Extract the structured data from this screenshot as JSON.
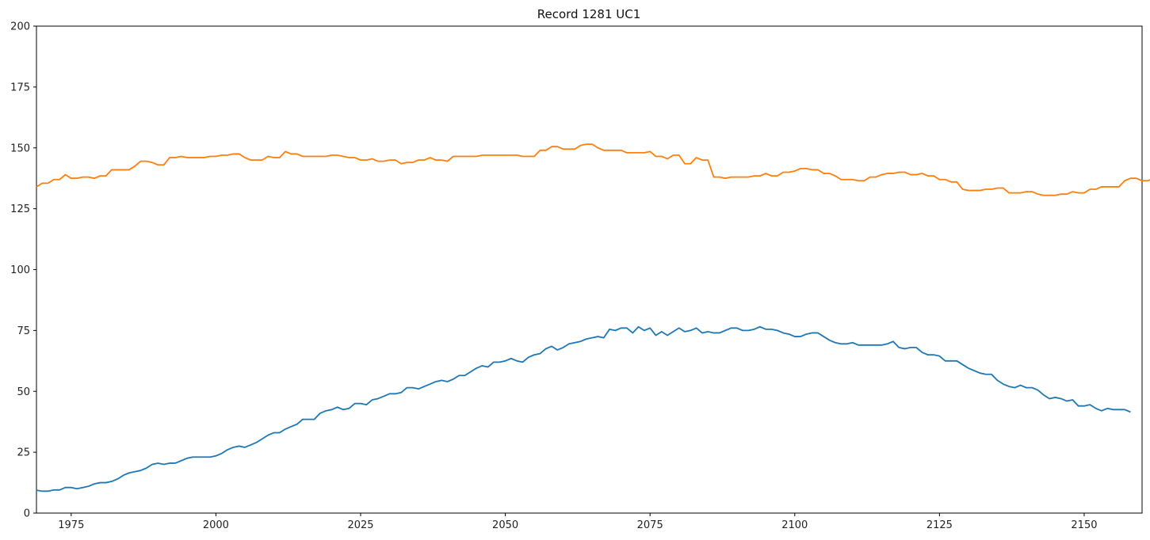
{
  "chart_data": {
    "type": "line",
    "title": "Record 1281 UC1",
    "xlabel": "",
    "ylabel": "",
    "xlim": [
      1969,
      2160
    ],
    "ylim": [
      0,
      200
    ],
    "grid": false,
    "x_ticks": [
      "1975",
      "2000",
      "2025",
      "2050",
      "2075",
      "2100",
      "2125",
      "2150"
    ],
    "y_ticks": [
      "0",
      "25",
      "50",
      "75",
      "100",
      "125",
      "150",
      "175",
      "200"
    ],
    "colors": [
      "#1f77b4",
      "#ff7f0e"
    ],
    "x_start": 1969,
    "x_step": 1,
    "series": [
      {
        "values": [
          9.4,
          9,
          9,
          9.5,
          9.5,
          10.5,
          10.5,
          10,
          10.5,
          11,
          12,
          12.5,
          12.5,
          13,
          14,
          15.5,
          16.5,
          17,
          17.5,
          18.5,
          20,
          20.5,
          20,
          20.5,
          20.5,
          21.5,
          22.5,
          23,
          23,
          23,
          23,
          23.5,
          24.5,
          26,
          27,
          27.5,
          27,
          28,
          29,
          30.5,
          32,
          33,
          33,
          34.5,
          35.5,
          36.5,
          38.5,
          38.5,
          38.5,
          41,
          42,
          42.5,
          43.5,
          42.5,
          43,
          45,
          45,
          44.5,
          46.5,
          47,
          48,
          49,
          49,
          49.5,
          51.5,
          51.5,
          51,
          52,
          53,
          54,
          54.5,
          54,
          55,
          56.5,
          56.5,
          58,
          59.5,
          60.5,
          60,
          62,
          62,
          62.5,
          63.5,
          62.5,
          62,
          64,
          65,
          65.5,
          67.5,
          68.5,
          67,
          68,
          69.5,
          70,
          70.5,
          71.5,
          72,
          72.5,
          72,
          75.5,
          75,
          76,
          76,
          74,
          76.5,
          75,
          76,
          73,
          74.5,
          73,
          74.5,
          76,
          74.5,
          75,
          76,
          74,
          74.5,
          74,
          74,
          75,
          76,
          76,
          75,
          75,
          75.5,
          76.5,
          75.5,
          75.5,
          75,
          74,
          73.5,
          72.5,
          72.5,
          73.5,
          74,
          74,
          72.5,
          71,
          70,
          69.5,
          69.5,
          70,
          69,
          69,
          69,
          69,
          69,
          69.5,
          70.5,
          68,
          67.5,
          68,
          68,
          66,
          65,
          65,
          64.5,
          62.5,
          62.5,
          62.5,
          61,
          59.5,
          58.5,
          57.5,
          57,
          57,
          54.5,
          53,
          52,
          51.5,
          52.5,
          51.5,
          51.5,
          50.5,
          48.5,
          47,
          47.5,
          47,
          46,
          46.5,
          44,
          44,
          44.5,
          43,
          42,
          43,
          42.5,
          42.5,
          42.5,
          41.5
        ]
      },
      {
        "values": [
          134,
          135.5,
          135.5,
          137,
          137,
          139,
          137.5,
          137.5,
          138,
          138,
          137.5,
          138.5,
          138.5,
          141,
          141,
          141,
          141,
          142.5,
          144.5,
          144.5,
          144,
          143,
          143,
          146,
          146,
          146.5,
          146,
          146,
          146,
          146,
          146.5,
          146.5,
          147,
          147,
          147.5,
          147.5,
          146,
          145,
          145,
          145,
          146.5,
          146,
          146,
          148.5,
          147.5,
          147.5,
          146.5,
          146.5,
          146.5,
          146.5,
          146.5,
          147,
          147,
          146.5,
          146,
          146,
          145,
          145,
          145.5,
          144.5,
          144.5,
          145,
          145,
          143.5,
          144,
          144,
          145,
          145,
          146,
          145,
          145,
          144.5,
          146.5,
          146.5,
          146.5,
          146.5,
          146.5,
          147,
          147,
          147,
          147,
          147,
          147,
          147,
          146.5,
          146.5,
          146.5,
          149,
          149,
          150.5,
          150.5,
          149.5,
          149.5,
          149.5,
          151,
          151.5,
          151.5,
          150,
          149,
          149,
          149,
          149,
          148,
          148,
          148,
          148,
          148.5,
          146.5,
          146.5,
          145.5,
          147,
          147,
          143.5,
          143.5,
          146,
          145,
          145,
          138,
          138,
          137.5,
          138,
          138,
          138,
          138,
          138.5,
          138.5,
          139.5,
          138.5,
          138.5,
          140,
          140,
          140.5,
          141.5,
          141.5,
          141,
          141,
          139.5,
          139.5,
          138.5,
          137,
          137,
          137,
          136.5,
          136.5,
          138,
          138,
          139,
          139.5,
          139.5,
          140,
          140,
          139,
          139,
          139.5,
          138.5,
          138.5,
          137,
          137,
          136,
          136,
          133,
          132.5,
          132.5,
          132.5,
          133,
          133,
          133.5,
          133.5,
          131.5,
          131.5,
          131.5,
          132,
          132,
          131,
          130.5,
          130.5,
          130.5,
          131,
          131,
          132,
          131.5,
          131.5,
          133,
          133,
          134,
          134,
          134,
          134,
          136.5,
          137.5,
          137.5,
          136.5,
          136.5,
          137.5
        ]
      }
    ]
  }
}
